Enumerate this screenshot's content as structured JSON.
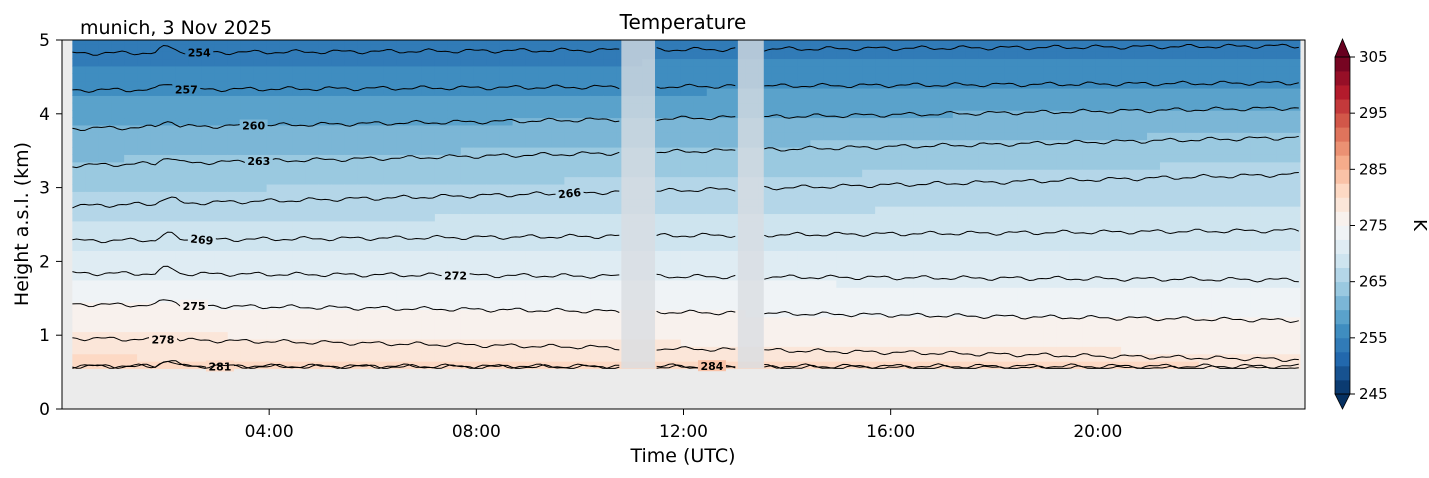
{
  "chart_data": {
    "type": "heatmap",
    "title": "Temperature",
    "location_label": "munich, 3 Nov 2025",
    "xlabel": "Time (UTC)",
    "ylabel": "Height a.s.l. (km)",
    "x_unit": "hours UTC",
    "xlim": [
      0,
      24
    ],
    "ylim": [
      0,
      5
    ],
    "x_ticks": [
      {
        "value": 4,
        "label": "04:00"
      },
      {
        "value": 8,
        "label": "08:00"
      },
      {
        "value": 12,
        "label": "12:00"
      },
      {
        "value": 16,
        "label": "16:00"
      },
      {
        "value": 20,
        "label": "20:00"
      }
    ],
    "y_ticks": [
      {
        "value": 0,
        "label": "0"
      },
      {
        "value": 1,
        "label": "1"
      },
      {
        "value": 2,
        "label": "2"
      },
      {
        "value": 3,
        "label": "3"
      },
      {
        "value": 4,
        "label": "4"
      },
      {
        "value": 5,
        "label": "5"
      }
    ],
    "data_bottom_km": 0.55,
    "data_time_range": [
      0.2,
      23.9
    ],
    "gaps": [
      {
        "start": 10.8,
        "end": 11.45
      },
      {
        "start": 13.05,
        "end": 13.55
      }
    ],
    "contours": [
      {
        "level": 254,
        "label": "254",
        "label_x": 2.65,
        "height_start": 4.82,
        "height_end": 4.92,
        "label_rotation": 0
      },
      {
        "level": 257,
        "label": "257",
        "label_x": 2.4,
        "height_start": 4.32,
        "height_end": 4.42,
        "label_rotation": 0
      },
      {
        "level": 260,
        "label": "260",
        "label_x": 3.7,
        "height_start": 3.8,
        "height_end": 4.08,
        "label_rotation": 0
      },
      {
        "level": 263,
        "label": "263",
        "label_x": 3.8,
        "height_start": 3.3,
        "height_end": 3.68,
        "label_rotation": 0
      },
      {
        "level": 266,
        "label": "266",
        "label_x": 9.8,
        "height_start": 2.75,
        "height_end": 3.18,
        "label_rotation": -6
      },
      {
        "level": 269,
        "label": "269",
        "label_x": 2.7,
        "height_start": 2.28,
        "height_end": 2.42,
        "label_rotation": 6
      },
      {
        "level": 272,
        "label": "272",
        "label_x": 7.6,
        "height_start": 1.84,
        "height_end": 1.75,
        "label_rotation": 0
      },
      {
        "level": 275,
        "label": "275",
        "label_x": 2.55,
        "height_start": 1.42,
        "height_end": 1.2,
        "label_rotation": 0
      },
      {
        "level": 278,
        "label": "278",
        "label_x": 1.95,
        "height_start": 0.96,
        "height_end": 0.67,
        "label_rotation": 0
      },
      {
        "level": 281,
        "label": "281",
        "label_x": 3.05,
        "height_start": 0.58,
        "height_end": 0.55,
        "label_rotation": 0
      },
      {
        "level": 284,
        "label": "284",
        "label_x": 12.55,
        "height_start": 0.58,
        "height_end": 0.58,
        "label_rotation": 0
      }
    ],
    "colorbar": {
      "label": "K",
      "min": 245,
      "max": 305,
      "step": 2.5,
      "extend": "both",
      "ticks": [
        {
          "value": 245,
          "label": "245"
        },
        {
          "value": 255,
          "label": "255"
        },
        {
          "value": 265,
          "label": "265"
        },
        {
          "value": 275,
          "label": "275"
        },
        {
          "value": 285,
          "label": "285"
        },
        {
          "value": 295,
          "label": "295"
        },
        {
          "value": 305,
          "label": "305"
        }
      ],
      "colormap": "RdBu_r",
      "colors": [
        "#053061",
        "#2166ac",
        "#4393c3",
        "#92c5de",
        "#d1e5f0",
        "#f7f7f7",
        "#fddbc7",
        "#f4a582",
        "#d6604d",
        "#b2182b",
        "#67001f"
      ]
    },
    "nodata_color": "#ebebeb",
    "gap_color": "#d8dde2",
    "contour_color": "#000000"
  }
}
